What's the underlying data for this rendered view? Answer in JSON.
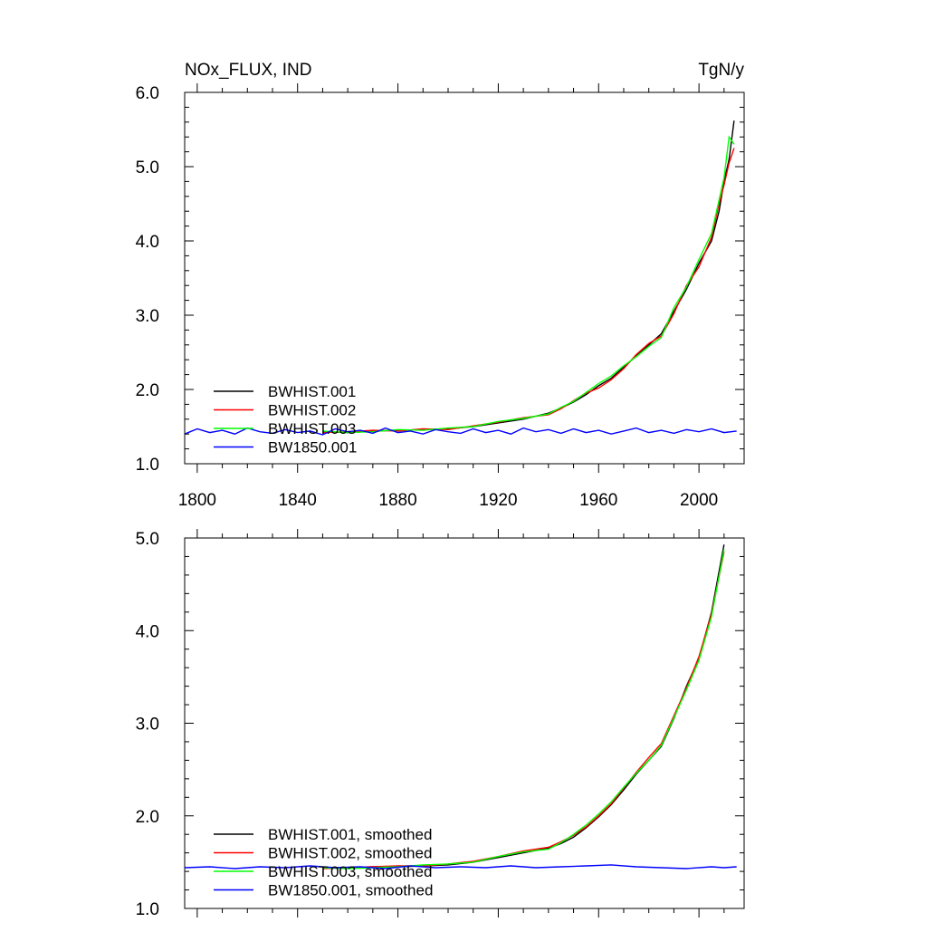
{
  "chart_data": [
    {
      "type": "line",
      "title": "NOx_FLUX, IND",
      "units": "TgN/y",
      "xlim": [
        1795,
        2018
      ],
      "ylim": [
        1.0,
        6.0
      ],
      "xticks": [
        1800,
        1840,
        1880,
        1920,
        1960,
        2000
      ],
      "xtick_labels": [
        "1800",
        "1840",
        "1880",
        "1920",
        "1960",
        "2000"
      ],
      "yticks": [
        1.0,
        2.0,
        3.0,
        4.0,
        5.0,
        6.0
      ],
      "ytick_labels": [
        "1.0",
        "2.0",
        "3.0",
        "4.0",
        "5.0",
        "6.0"
      ],
      "legend_position": "bottom-left",
      "grid": false,
      "series": [
        {
          "name": "BWHIST.001",
          "color": "#000000",
          "x": [
            1850,
            1860,
            1870,
            1880,
            1890,
            1900,
            1910,
            1920,
            1930,
            1940,
            1945,
            1950,
            1955,
            1960,
            1965,
            1970,
            1975,
            1980,
            1985,
            1990,
            1995,
            2000,
            2005,
            2008,
            2010,
            2012,
            2014
          ],
          "y": [
            1.43,
            1.42,
            1.44,
            1.45,
            1.46,
            1.47,
            1.5,
            1.55,
            1.6,
            1.68,
            1.75,
            1.83,
            1.93,
            2.05,
            2.15,
            2.3,
            2.45,
            2.6,
            2.75,
            3.05,
            3.35,
            3.7,
            4.0,
            4.4,
            4.8,
            5.1,
            5.62
          ]
        },
        {
          "name": "BWHIST.002",
          "color": "#ff0000",
          "x": [
            1850,
            1860,
            1870,
            1880,
            1890,
            1900,
            1910,
            1920,
            1930,
            1940,
            1945,
            1950,
            1955,
            1960,
            1965,
            1970,
            1975,
            1980,
            1985,
            1990,
            1995,
            2000,
            2005,
            2008,
            2010,
            2012,
            2014
          ],
          "y": [
            1.42,
            1.43,
            1.45,
            1.44,
            1.47,
            1.46,
            1.51,
            1.56,
            1.62,
            1.66,
            1.74,
            1.85,
            1.95,
            2.02,
            2.13,
            2.28,
            2.47,
            2.62,
            2.72,
            3.02,
            3.4,
            3.65,
            4.05,
            4.5,
            4.75,
            5.05,
            5.25
          ]
        },
        {
          "name": "BWHIST.003",
          "color": "#00ff00",
          "x": [
            1850,
            1860,
            1870,
            1880,
            1890,
            1900,
            1910,
            1920,
            1930,
            1940,
            1945,
            1950,
            1955,
            1960,
            1965,
            1970,
            1975,
            1980,
            1985,
            1990,
            1995,
            2000,
            2005,
            2008,
            2010,
            2012,
            2014
          ],
          "y": [
            1.44,
            1.42,
            1.43,
            1.46,
            1.45,
            1.48,
            1.5,
            1.57,
            1.61,
            1.67,
            1.76,
            1.84,
            1.96,
            2.08,
            2.18,
            2.32,
            2.44,
            2.58,
            2.7,
            3.1,
            3.38,
            3.75,
            4.1,
            4.55,
            4.85,
            5.4,
            5.3
          ]
        },
        {
          "name": "BW1850.001",
          "color": "#0000ff",
          "x": [
            1795,
            1800,
            1805,
            1810,
            1815,
            1820,
            1825,
            1830,
            1835,
            1840,
            1845,
            1850,
            1855,
            1860,
            1865,
            1870,
            1875,
            1880,
            1885,
            1890,
            1895,
            1900,
            1905,
            1910,
            1915,
            1920,
            1925,
            1930,
            1935,
            1940,
            1945,
            1950,
            1955,
            1960,
            1965,
            1970,
            1975,
            1980,
            1985,
            1990,
            1995,
            2000,
            2005,
            2010,
            2015
          ],
          "y": [
            1.4,
            1.47,
            1.42,
            1.45,
            1.4,
            1.48,
            1.43,
            1.41,
            1.46,
            1.42,
            1.44,
            1.39,
            1.47,
            1.43,
            1.45,
            1.41,
            1.48,
            1.42,
            1.44,
            1.4,
            1.46,
            1.43,
            1.41,
            1.47,
            1.42,
            1.45,
            1.4,
            1.48,
            1.43,
            1.46,
            1.41,
            1.47,
            1.42,
            1.45,
            1.4,
            1.44,
            1.48,
            1.42,
            1.45,
            1.41,
            1.46,
            1.43,
            1.47,
            1.42,
            1.44
          ]
        }
      ]
    },
    {
      "type": "line",
      "title": "",
      "xlim": [
        1795,
        2018
      ],
      "ylim": [
        1.0,
        5.0
      ],
      "xticks": [
        1800,
        1840,
        1880,
        1920,
        1960,
        2000
      ],
      "yticks": [
        1.0,
        2.0,
        3.0,
        4.0,
        5.0
      ],
      "ytick_labels": [
        "1.0",
        "2.0",
        "3.0",
        "4.0",
        "5.0"
      ],
      "legend_position": "bottom-left",
      "grid": false,
      "series": [
        {
          "name": "BWHIST.001, smoothed",
          "color": "#000000",
          "x": [
            1850,
            1860,
            1870,
            1880,
            1890,
            1900,
            1910,
            1920,
            1930,
            1940,
            1945,
            1950,
            1955,
            1960,
            1965,
            1970,
            1975,
            1980,
            1985,
            1990,
            1995,
            2000,
            2005,
            2010
          ],
          "y": [
            1.44,
            1.44,
            1.45,
            1.45,
            1.46,
            1.47,
            1.5,
            1.55,
            1.6,
            1.65,
            1.7,
            1.77,
            1.87,
            1.99,
            2.12,
            2.28,
            2.45,
            2.6,
            2.75,
            3.05,
            3.4,
            3.7,
            4.2,
            4.93
          ]
        },
        {
          "name": "BWHIST.002, smoothed",
          "color": "#ff0000",
          "x": [
            1850,
            1860,
            1870,
            1880,
            1890,
            1900,
            1910,
            1920,
            1930,
            1940,
            1945,
            1950,
            1955,
            1960,
            1965,
            1970,
            1975,
            1980,
            1985,
            1990,
            1995,
            2000,
            2005,
            2010
          ],
          "y": [
            1.43,
            1.44,
            1.45,
            1.46,
            1.46,
            1.48,
            1.51,
            1.56,
            1.62,
            1.66,
            1.72,
            1.79,
            1.88,
            2.0,
            2.13,
            2.3,
            2.47,
            2.63,
            2.78,
            3.08,
            3.38,
            3.72,
            4.18,
            4.85
          ]
        },
        {
          "name": "BWHIST.003, smoothed",
          "color": "#00ff00",
          "x": [
            1850,
            1860,
            1870,
            1880,
            1890,
            1900,
            1910,
            1920,
            1930,
            1940,
            1945,
            1950,
            1955,
            1960,
            1965,
            1970,
            1975,
            1980,
            1985,
            1990,
            1995,
            2000,
            2005,
            2010
          ],
          "y": [
            1.44,
            1.43,
            1.44,
            1.45,
            1.47,
            1.48,
            1.5,
            1.56,
            1.61,
            1.64,
            1.71,
            1.8,
            1.9,
            2.02,
            2.15,
            2.31,
            2.46,
            2.6,
            2.76,
            3.06,
            3.36,
            3.68,
            4.15,
            4.88
          ]
        },
        {
          "name": "BW1850.001, smoothed",
          "color": "#0000ff",
          "x": [
            1795,
            1805,
            1815,
            1825,
            1835,
            1845,
            1855,
            1865,
            1875,
            1885,
            1895,
            1905,
            1915,
            1925,
            1935,
            1945,
            1955,
            1965,
            1975,
            1985,
            1995,
            2005,
            2010,
            2015
          ],
          "y": [
            1.44,
            1.45,
            1.43,
            1.45,
            1.44,
            1.46,
            1.44,
            1.45,
            1.43,
            1.46,
            1.44,
            1.45,
            1.44,
            1.46,
            1.44,
            1.45,
            1.46,
            1.47,
            1.45,
            1.44,
            1.43,
            1.45,
            1.44,
            1.45
          ]
        }
      ]
    }
  ]
}
